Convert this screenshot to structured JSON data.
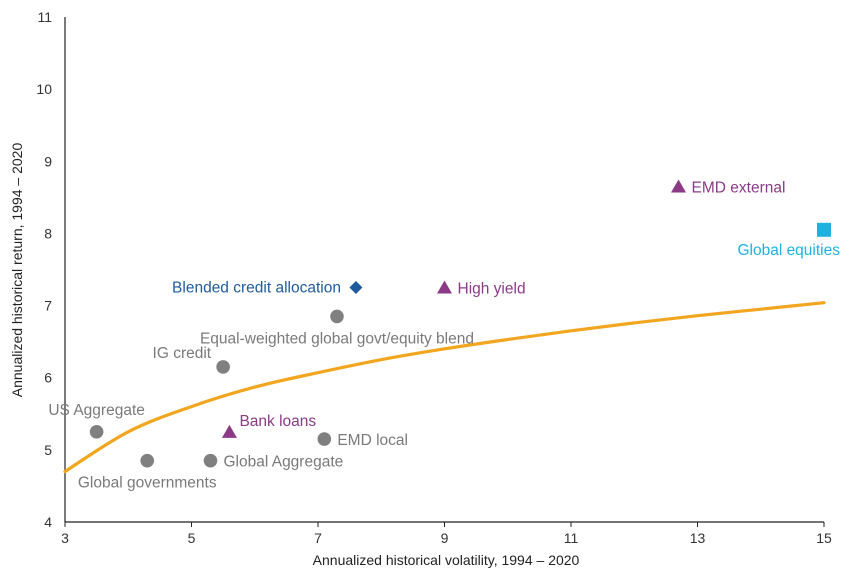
{
  "chart_data": {
    "type": "scatter",
    "title": "",
    "xlabel": "Annualized historical volatility, 1994 – 2020",
    "ylabel": "Annualized historical return, 1994 – 2020",
    "xlim": [
      3,
      15
    ],
    "ylim": [
      4,
      11
    ],
    "x_ticks": [
      "3",
      "5",
      "7",
      "9",
      "11",
      "13",
      "15"
    ],
    "y_ticks": [
      "4",
      "5",
      "6",
      "7",
      "8",
      "9",
      "10",
      "11"
    ],
    "grid": false,
    "colors": {
      "grey": "#808080",
      "grey_text": "#7a7a7a",
      "purple": "#8a3a86",
      "blue": "#1f5b9c",
      "cyan": "#1fb2e0",
      "curve": "#f2a51e",
      "axis": "#222222"
    },
    "points": [
      {
        "label": "US Aggregate",
        "x": 3.5,
        "y": 5.25,
        "marker": "circle",
        "color": "grey",
        "label_pos": "above"
      },
      {
        "label": "Global governments",
        "x": 4.3,
        "y": 4.85,
        "marker": "circle",
        "color": "grey",
        "label_pos": "below"
      },
      {
        "label": "Global Aggregate",
        "x": 5.3,
        "y": 4.85,
        "marker": "circle",
        "color": "grey",
        "label_pos": "right"
      },
      {
        "label": "IG credit",
        "x": 5.5,
        "y": 6.15,
        "marker": "circle",
        "color": "grey",
        "label_pos": "above-left"
      },
      {
        "label": "Bank loans",
        "x": 5.6,
        "y": 5.25,
        "marker": "triangle",
        "color": "purple",
        "label_pos": "above-right"
      },
      {
        "label": "EMD local",
        "x": 7.1,
        "y": 5.15,
        "marker": "circle",
        "color": "grey",
        "label_pos": "right"
      },
      {
        "label": "Equal-weighted global govt/equity blend",
        "x": 7.3,
        "y": 6.85,
        "marker": "circle",
        "color": "grey",
        "label_pos": "below"
      },
      {
        "label": "Blended credit allocation",
        "x": 7.6,
        "y": 7.25,
        "marker": "diamond",
        "color": "blue",
        "label_pos": "left"
      },
      {
        "label": "High yield",
        "x": 9.0,
        "y": 7.25,
        "marker": "triangle",
        "color": "purple",
        "label_pos": "right"
      },
      {
        "label": "EMD external",
        "x": 12.7,
        "y": 8.65,
        "marker": "triangle",
        "color": "purple",
        "label_pos": "right"
      },
      {
        "label": "Global equities",
        "x": 15.0,
        "y": 8.05,
        "marker": "square",
        "color": "cyan",
        "label_pos": "below-left"
      }
    ],
    "frontier": {
      "x": [
        3.0,
        4.0,
        5.0,
        6.0,
        7.0,
        8.0,
        9.0,
        10.0,
        11.0,
        12.0,
        13.0,
        14.0,
        15.0
      ],
      "y": [
        4.7,
        5.25,
        5.6,
        5.87,
        6.07,
        6.25,
        6.4,
        6.53,
        6.65,
        6.76,
        6.86,
        6.95,
        7.04
      ]
    }
  }
}
